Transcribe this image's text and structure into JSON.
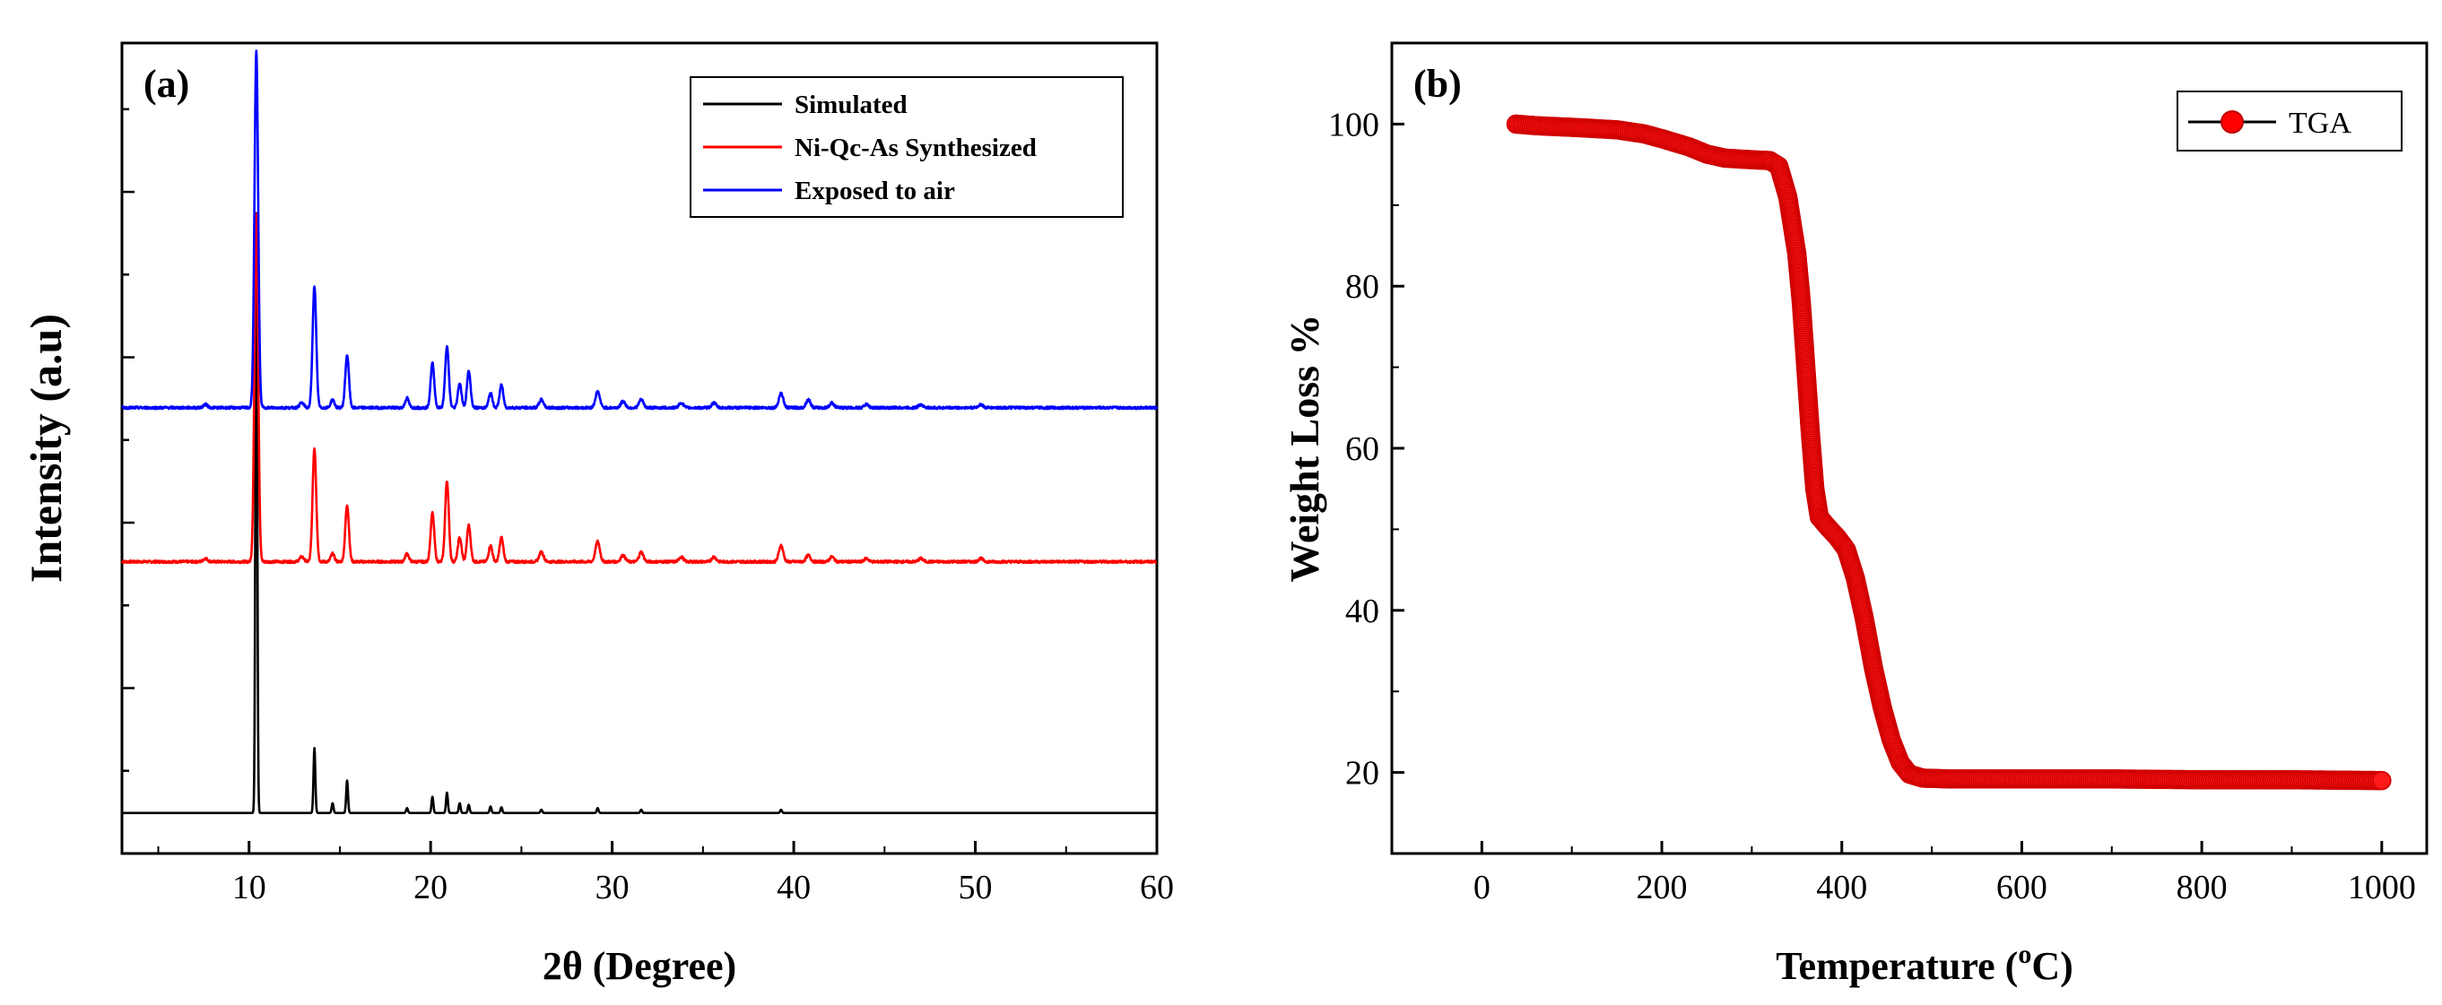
{
  "chart_data": [
    {
      "panel": "(a)",
      "type": "line",
      "xlabel": "2θ (Degree)",
      "ylabel": "Intensity (a.u)",
      "xlim": [
        3,
        60
      ],
      "xticks": [
        10,
        20,
        30,
        40,
        50,
        60
      ],
      "yticks_labeled": false,
      "legend": [
        "Simulated",
        "Ni-Qc-As Synthesized",
        "Exposed to air"
      ],
      "colors": {
        "Simulated": "#000000",
        "Ni-Qc-As Synthesized": "#ff0000",
        "Exposed to air": "#0000ff"
      },
      "series": [
        {
          "name": "Simulated",
          "baseline": 0.05,
          "noise": 0.0,
          "peaks": [
            [
              10.4,
              0.74,
              0.05
            ],
            [
              13.6,
              0.08,
              0.05
            ],
            [
              14.6,
              0.012,
              0.05
            ],
            [
              15.4,
              0.04,
              0.05
            ],
            [
              18.7,
              0.006,
              0.05
            ],
            [
              20.1,
              0.02,
              0.05
            ],
            [
              20.9,
              0.025,
              0.05
            ],
            [
              21.6,
              0.012,
              0.05
            ],
            [
              22.1,
              0.01,
              0.05
            ],
            [
              23.3,
              0.008,
              0.05
            ],
            [
              23.9,
              0.007,
              0.05
            ],
            [
              26.1,
              0.004,
              0.05
            ],
            [
              29.2,
              0.006,
              0.05
            ],
            [
              31.6,
              0.004,
              0.05
            ],
            [
              39.3,
              0.004,
              0.05
            ]
          ]
        },
        {
          "name": "Ni-Qc-As Synthesized",
          "baseline": 0.36,
          "noise": 0.003,
          "peaks": [
            [
              7.6,
              0.004,
              0.12
            ],
            [
              10.4,
              0.43,
              0.1
            ],
            [
              12.9,
              0.006,
              0.12
            ],
            [
              13.6,
              0.14,
              0.1
            ],
            [
              14.6,
              0.01,
              0.1
            ],
            [
              15.4,
              0.07,
              0.1
            ],
            [
              18.7,
              0.01,
              0.1
            ],
            [
              20.1,
              0.06,
              0.1
            ],
            [
              20.9,
              0.1,
              0.1
            ],
            [
              21.6,
              0.03,
              0.1
            ],
            [
              22.1,
              0.045,
              0.1
            ],
            [
              23.3,
              0.02,
              0.1
            ],
            [
              23.9,
              0.03,
              0.1
            ],
            [
              26.1,
              0.012,
              0.12
            ],
            [
              29.2,
              0.025,
              0.12
            ],
            [
              30.6,
              0.008,
              0.12
            ],
            [
              31.6,
              0.012,
              0.12
            ],
            [
              33.8,
              0.006,
              0.12
            ],
            [
              35.6,
              0.006,
              0.12
            ],
            [
              39.3,
              0.02,
              0.12
            ],
            [
              40.8,
              0.008,
              0.12
            ],
            [
              42.1,
              0.006,
              0.12
            ],
            [
              44.0,
              0.004,
              0.12
            ],
            [
              47.0,
              0.004,
              0.12
            ],
            [
              50.3,
              0.004,
              0.12
            ]
          ]
        },
        {
          "name": "Exposed to air",
          "baseline": 0.55,
          "noise": 0.003,
          "peaks": [
            [
              7.6,
              0.004,
              0.12
            ],
            [
              10.4,
              0.44,
              0.1
            ],
            [
              12.9,
              0.006,
              0.12
            ],
            [
              13.6,
              0.15,
              0.1
            ],
            [
              14.6,
              0.01,
              0.1
            ],
            [
              15.4,
              0.065,
              0.1
            ],
            [
              18.7,
              0.012,
              0.1
            ],
            [
              20.1,
              0.055,
              0.1
            ],
            [
              20.9,
              0.075,
              0.1
            ],
            [
              21.6,
              0.03,
              0.1
            ],
            [
              22.1,
              0.045,
              0.1
            ],
            [
              23.3,
              0.018,
              0.1
            ],
            [
              23.9,
              0.028,
              0.1
            ],
            [
              26.1,
              0.01,
              0.12
            ],
            [
              29.2,
              0.02,
              0.12
            ],
            [
              30.6,
              0.008,
              0.12
            ],
            [
              31.6,
              0.01,
              0.12
            ],
            [
              33.8,
              0.006,
              0.12
            ],
            [
              35.6,
              0.006,
              0.12
            ],
            [
              39.3,
              0.018,
              0.12
            ],
            [
              40.8,
              0.01,
              0.12
            ],
            [
              42.1,
              0.006,
              0.12
            ],
            [
              44.0,
              0.004,
              0.12
            ],
            [
              47.0,
              0.004,
              0.12
            ],
            [
              50.3,
              0.004,
              0.12
            ]
          ]
        }
      ],
      "ylim": [
        0,
        1.0
      ]
    },
    {
      "panel": "(b)",
      "type": "scatter",
      "xlabel_main": "Temperature (",
      "xlabel_sup": "o",
      "xlabel_end": "C)",
      "ylabel": "Weight Loss %",
      "xlim": [
        -100,
        1050
      ],
      "ylim": [
        10,
        110
      ],
      "xticks": [
        0,
        200,
        400,
        600,
        800,
        1000
      ],
      "yticks": [
        20,
        40,
        60,
        80,
        100
      ],
      "legend": [
        "TGA"
      ],
      "color": "#ff0000",
      "series": [
        {
          "name": "TGA",
          "points": [
            [
              38,
              100.0
            ],
            [
              60,
              99.8
            ],
            [
              100,
              99.6
            ],
            [
              150,
              99.3
            ],
            [
              180,
              98.8
            ],
            [
              200,
              98.2
            ],
            [
              230,
              97.2
            ],
            [
              250,
              96.3
            ],
            [
              270,
              95.8
            ],
            [
              300,
              95.6
            ],
            [
              320,
              95.5
            ],
            [
              330,
              94.8
            ],
            [
              340,
              91
            ],
            [
              350,
              84
            ],
            [
              355,
              78
            ],
            [
              360,
              70
            ],
            [
              365,
              62
            ],
            [
              370,
              55
            ],
            [
              375,
              51.5
            ],
            [
              385,
              50.2
            ],
            [
              395,
              49.0
            ],
            [
              405,
              47.5
            ],
            [
              415,
              44
            ],
            [
              425,
              39
            ],
            [
              435,
              33
            ],
            [
              445,
              28
            ],
            [
              455,
              24
            ],
            [
              465,
              21.2
            ],
            [
              475,
              19.8
            ],
            [
              490,
              19.3
            ],
            [
              520,
              19.2
            ],
            [
              600,
              19.2
            ],
            [
              700,
              19.2
            ],
            [
              800,
              19.1
            ],
            [
              900,
              19.1
            ],
            [
              1000,
              19.0
            ]
          ]
        }
      ]
    }
  ]
}
